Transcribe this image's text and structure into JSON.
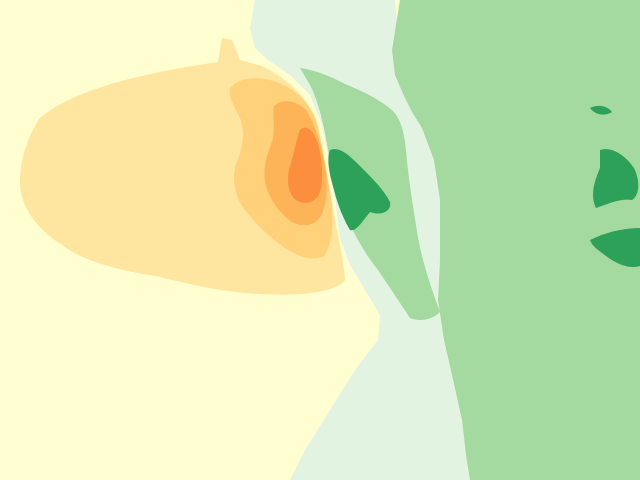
{
  "map": {
    "colors": {
      "ocean_base": "#fffed0",
      "ocean_tier_1": "#fee5a0",
      "ocean_tier_2": "#fed17a",
      "ocean_tier_3": "#fdb458",
      "ocean_tier_4": "#fc8f3d",
      "shelf_water": "#e3f3e2",
      "land": "#a4d99f",
      "land_high": "#2da05a"
    }
  }
}
